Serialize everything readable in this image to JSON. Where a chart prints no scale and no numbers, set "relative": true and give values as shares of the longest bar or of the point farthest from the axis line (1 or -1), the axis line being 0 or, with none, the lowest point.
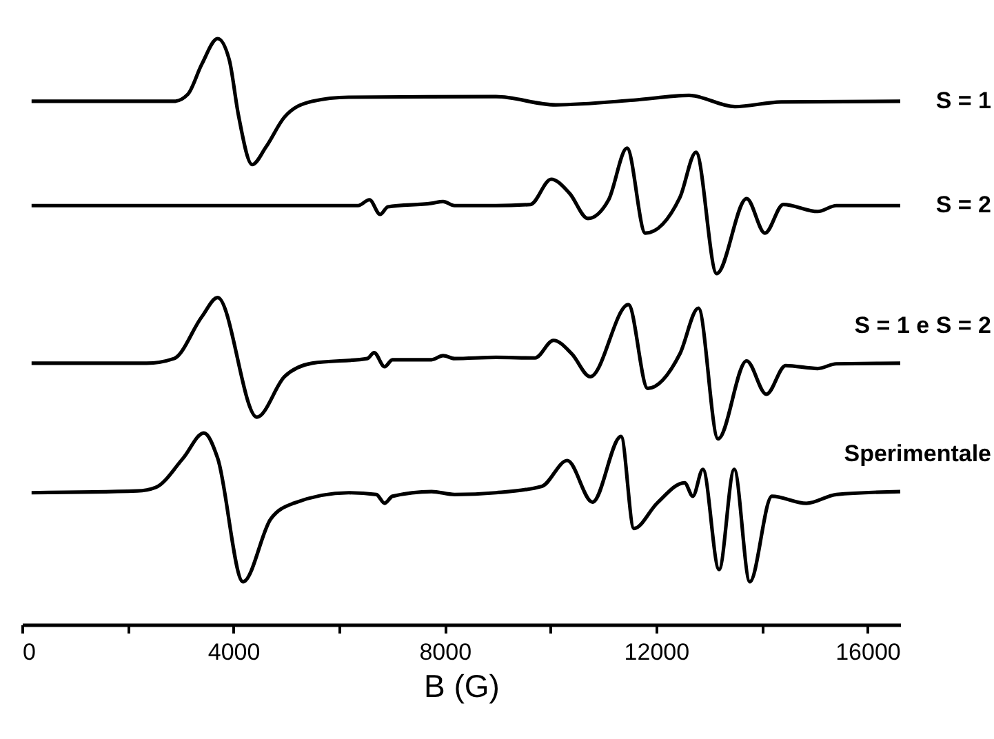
{
  "chart_data": {
    "type": "line",
    "xlabel": "B (G)",
    "relative": true,
    "xlim": [
      0,
      16620
    ],
    "xticks": [
      0,
      {
        "value": 2000,
        "label": null
      },
      4000,
      {
        "value": 6000,
        "label": null
      },
      8000,
      {
        "value": 10000,
        "label": null
      },
      12000,
      {
        "value": 14000,
        "label": null
      },
      16000
    ],
    "series": [
      {
        "name": "S = 1",
        "color": "#000000",
        "x": [
          180,
          2877,
          3138,
          3400,
          3702,
          3921,
          4094,
          4355,
          4616,
          4966,
          5488,
          6183,
          8969,
          10097,
          11580,
          12624,
          13490,
          14365,
          16620
        ],
        "values": [
          0.893,
          0.893,
          0.905,
          0.956,
          1.0,
          0.964,
          0.87,
          0.785,
          0.815,
          0.866,
          0.893,
          0.9,
          0.901,
          0.887,
          0.895,
          0.903,
          0.884,
          0.892,
          0.893
        ]
      },
      {
        "name": "S = 2",
        "color": "#000000",
        "x": [
          180,
          6358,
          6575,
          6776,
          6924,
          7750,
          7969,
          8185,
          8969,
          9621,
          10013,
          10361,
          10709,
          11101,
          11449,
          11797,
          12450,
          12755,
          13146,
          13712,
          14060,
          14407,
          15060,
          15410,
          16620
        ],
        "values": [
          0.715,
          0.715,
          0.725,
          0.7,
          0.713,
          0.719,
          0.722,
          0.715,
          0.715,
          0.717,
          0.76,
          0.736,
          0.693,
          0.725,
          0.813,
          0.668,
          0.729,
          0.806,
          0.599,
          0.727,
          0.668,
          0.717,
          0.705,
          0.715,
          0.715
        ]
      },
      {
        "name": "S = 1 e S = 2",
        "color": "#000000",
        "x": [
          180,
          2355,
          2877,
          3400,
          3702,
          4444,
          4966,
          5488,
          6533,
          6663,
          6862,
          7010,
          7750,
          7969,
          8185,
          8969,
          9708,
          10057,
          10405,
          10753,
          11475,
          11841,
          12450,
          12800,
          13172,
          13712,
          14086,
          14451,
          15060,
          15410,
          16620
        ],
        "values": [
          0.446,
          0.446,
          0.454,
          0.525,
          0.558,
          0.354,
          0.423,
          0.446,
          0.454,
          0.464,
          0.44,
          0.452,
          0.452,
          0.459,
          0.454,
          0.456,
          0.455,
          0.485,
          0.462,
          0.423,
          0.546,
          0.403,
          0.462,
          0.54,
          0.317,
          0.45,
          0.393,
          0.442,
          0.437,
          0.445,
          0.446
        ]
      },
      {
        "name": "Sperimentale",
        "color": "#000000",
        "x": [
          180,
          2180,
          2527,
          3049,
          3441,
          3702,
          4183,
          4705,
          5140,
          6183,
          6705,
          6862,
          7010,
          7750,
          8185,
          8969,
          9838,
          10318,
          10796,
          11336,
          11580,
          12016,
          12538,
          12694,
          12885,
          13191,
          13478,
          13773,
          14191,
          14843,
          15410,
          16620
        ],
        "values": [
          0.225,
          0.228,
          0.234,
          0.284,
          0.327,
          0.284,
          0.073,
          0.18,
          0.207,
          0.225,
          0.222,
          0.207,
          0.219,
          0.227,
          0.222,
          0.225,
          0.236,
          0.28,
          0.209,
          0.321,
          0.164,
          0.207,
          0.242,
          0.219,
          0.265,
          0.094,
          0.265,
          0.073,
          0.219,
          0.207,
          0.222,
          0.227
        ]
      }
    ]
  }
}
